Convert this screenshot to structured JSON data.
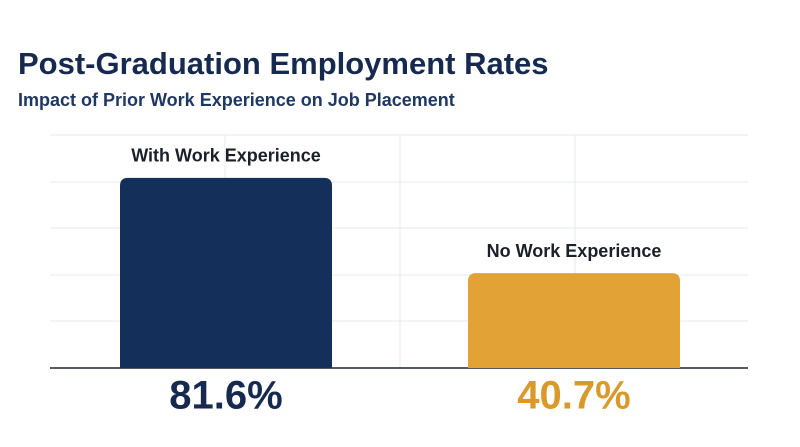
{
  "chart_data": {
    "type": "bar",
    "title": "Post-Graduation Employment Rates",
    "subtitle": "Impact of Prior Work Experience on Job Placement",
    "categories": [
      "With Work Experience",
      "No Work Experience"
    ],
    "values": [
      81.6,
      40.7
    ],
    "value_labels": [
      "81.6%",
      "40.7%"
    ],
    "colors": [
      "#14305a",
      "#e3a236"
    ],
    "label_colors": [
      "#16294f",
      "#d99a2b"
    ],
    "ylim": [
      0,
      100
    ]
  }
}
